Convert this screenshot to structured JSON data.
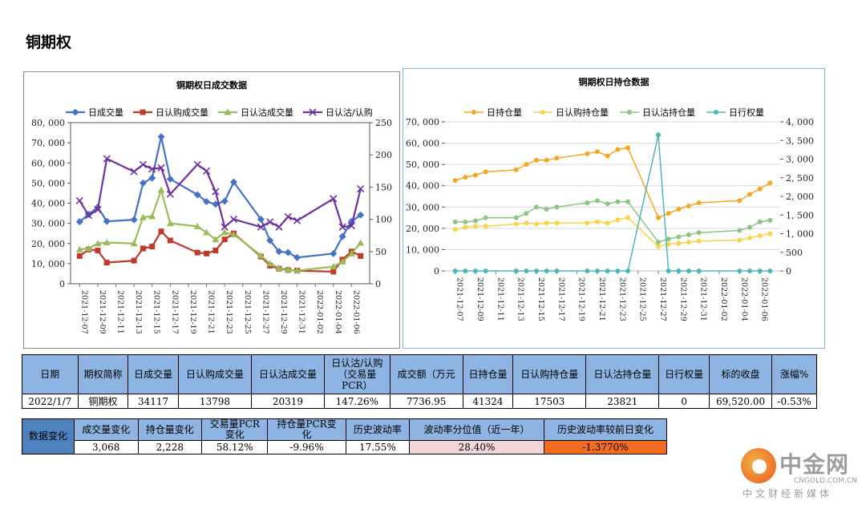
{
  "page": {
    "title": "铜期权"
  },
  "chart_data": [
    {
      "type": "line",
      "title": "铜期权日成交数据",
      "x": [
        "2021-12-07",
        "2021-12-08",
        "2021-12-09",
        "2021-12-10",
        "2021-12-13",
        "2021-12-14",
        "2021-12-15",
        "2021-12-16",
        "2021-12-17",
        "2021-12-20",
        "2021-12-21",
        "2021-12-22",
        "2021-12-23",
        "2021-12-24",
        "2021-12-27",
        "2021-12-28",
        "2021-12-29",
        "2021-12-30",
        "2021-12-31",
        "2022-01-04",
        "2022-01-05",
        "2022-01-06",
        "2022-01-07"
      ],
      "x_tick_labels": [
        "2021-12-07",
        "2021-12-09",
        "2021-12-11",
        "2021-12-13",
        "2021-12-15",
        "2021-12-17",
        "2021-12-19",
        "2021-12-21",
        "2021-12-23",
        "2021-12-25",
        "2021-12-27",
        "2021-12-29",
        "2021-12-31",
        "2022-01-02",
        "2022-01-04",
        "2022-01-06"
      ],
      "y_left_ticks": [
        "0",
        "10, 000",
        "20, 000",
        "30, 000",
        "40, 000",
        "50, 000",
        "60, 000",
        "70, 000",
        "80, 000"
      ],
      "y_right_ticks": [
        "0",
        "50",
        "100",
        "150",
        "200",
        "250"
      ],
      "ylim_left": [
        0,
        80000
      ],
      "ylim_right": [
        0,
        250
      ],
      "x_range": [
        "2021-12-06",
        "2022-01-08"
      ],
      "legend_position": "top",
      "grid": false,
      "series": [
        {
          "name": "日成交量",
          "axis": "left",
          "color": "#4472c4",
          "marker": "diamond",
          "values": [
            30800,
            34500,
            38000,
            31000,
            31800,
            50000,
            52500,
            73000,
            52000,
            44200,
            40800,
            39500,
            41000,
            50500,
            32000,
            21500,
            16000,
            15500,
            13000,
            15000,
            23500,
            31000,
            34117
          ]
        },
        {
          "name": "日认购成交量",
          "axis": "left",
          "color": "#c0392b",
          "marker": "square",
          "values": [
            13800,
            17000,
            16500,
            10500,
            11500,
            17500,
            18500,
            26000,
            21500,
            15500,
            15000,
            16500,
            22000,
            25000,
            13500,
            9000,
            7500,
            6800,
            6500,
            6000,
            12000,
            16000,
            13798
          ]
        },
        {
          "name": "日认沽成交量",
          "axis": "left",
          "color": "#9bbb59",
          "marker": "triangle",
          "values": [
            17000,
            17500,
            20000,
            20500,
            20000,
            33000,
            33500,
            46500,
            30000,
            28500,
            25500,
            22000,
            25500,
            24500,
            14000,
            10000,
            7800,
            7000,
            6500,
            8500,
            11000,
            15000,
            20319
          ]
        },
        {
          "name": "日认沽/认购",
          "axis": "right",
          "color": "#7030a0",
          "marker": "x",
          "values": [
            129,
            106,
            115,
            194,
            174,
            185,
            178,
            180,
            139,
            185,
            175,
            143,
            88,
            100,
            88,
            96,
            88,
            104,
            98,
            132,
            88,
            90,
            147.26
          ]
        }
      ]
    },
    {
      "type": "line",
      "title": "铜期权日持仓数据",
      "x": [
        "2021-12-07",
        "2021-12-08",
        "2021-12-09",
        "2021-12-10",
        "2021-12-13",
        "2021-12-14",
        "2021-12-15",
        "2021-12-16",
        "2021-12-17",
        "2021-12-20",
        "2021-12-21",
        "2021-12-22",
        "2021-12-23",
        "2021-12-24",
        "2021-12-27",
        "2021-12-28",
        "2021-12-29",
        "2021-12-30",
        "2021-12-31",
        "2022-01-04",
        "2022-01-05",
        "2022-01-06",
        "2022-01-07"
      ],
      "x_tick_labels": [
        "2021-12-07",
        "2021-12-09",
        "2021-12-11",
        "2021-12-13",
        "2021-12-15",
        "2021-12-17",
        "2021-12-19",
        "2021-12-21",
        "2021-12-23",
        "2021-12-25",
        "2021-12-27",
        "2021-12-29",
        "2021-12-31",
        "2022-01-02",
        "2022-01-04",
        "2022-01-06"
      ],
      "y_left_ticks": [
        "0",
        "10, 000",
        "20, 000",
        "30, 000",
        "40, 000",
        "50, 000",
        "60, 000",
        "70, 000"
      ],
      "y_right_ticks": [
        "0",
        "500",
        "1, 000",
        "1, 500",
        "2, 000",
        "2, 500",
        "3, 000",
        "3, 500",
        "4, 000"
      ],
      "ylim_left": [
        0,
        70000
      ],
      "ylim_right": [
        0,
        4000
      ],
      "x_range": [
        "2021-12-06",
        "2022-01-08"
      ],
      "legend_position": "top",
      "grid": true,
      "series": [
        {
          "name": "日持仓量",
          "axis": "left",
          "color": "#f5a623",
          "marker": "circle",
          "values": [
            42500,
            44000,
            45000,
            46500,
            47500,
            50000,
            52000,
            52000,
            53000,
            55000,
            56000,
            54000,
            57000,
            57800,
            25000,
            27000,
            29000,
            30500,
            32000,
            33000,
            36000,
            38500,
            41324
          ]
        },
        {
          "name": "日认购持仓量",
          "axis": "left",
          "color": "#f7d448",
          "marker": "circle",
          "values": [
            19500,
            20500,
            21000,
            21000,
            22000,
            22500,
            22000,
            22500,
            22500,
            22500,
            23000,
            22500,
            24000,
            25000,
            11500,
            12500,
            13000,
            13500,
            14000,
            14500,
            15500,
            16500,
            17503
          ]
        },
        {
          "name": "日认沽持仓量",
          "axis": "left",
          "color": "#8dc484",
          "marker": "circle",
          "values": [
            23000,
            23000,
            23500,
            25000,
            25000,
            27000,
            30000,
            29000,
            30000,
            32000,
            33000,
            31500,
            32500,
            32500,
            13500,
            15000,
            16000,
            17000,
            18000,
            19000,
            20500,
            23000,
            23821
          ]
        },
        {
          "name": "日行权量",
          "axis": "right",
          "color": "#4bb8b8",
          "marker": "circle",
          "values": [
            0,
            0,
            0,
            0,
            0,
            0,
            0,
            0,
            0,
            0,
            0,
            0,
            0,
            0,
            3650,
            0,
            0,
            0,
            0,
            0,
            0,
            0,
            0
          ]
        }
      ]
    }
  ],
  "table1": {
    "headers": [
      "日期",
      "期权简称",
      "日成交量",
      "日认购成交量",
      "日认沽成交量",
      "日认沽/认购（交易量PCR）",
      "成交额（万元）",
      "日持仓量",
      "日认购持仓量",
      "日认沽持仓量",
      "日行权量",
      "标的收盘",
      "涨幅%"
    ],
    "header_lines": [
      [
        "日期"
      ],
      [
        "期权简称"
      ],
      [
        "日成交量"
      ],
      [
        "日认购成交量"
      ],
      [
        "日认沽成交量"
      ],
      [
        "日认沽/认购",
        "（交易量",
        "PCR）"
      ],
      [
        "成交额（万元"
      ],
      [
        "日持仓量"
      ],
      [
        "日认购持仓量"
      ],
      [
        "日认沽持仓量"
      ],
      [
        "日行权量"
      ],
      [
        "标的收盘"
      ],
      [
        "涨幅%"
      ]
    ],
    "row": [
      "2022/1/7",
      "铜期权",
      "34117",
      "13798",
      "20319",
      "147.26%",
      "7736.95",
      "41324",
      "17503",
      "23821",
      "0",
      "69,520.00",
      "-0.53%"
    ]
  },
  "table2": {
    "side_label": "数据变化",
    "headers": [
      "成交量变化",
      "持仓量变化",
      "交易量PCR变化",
      "持仓量PCR变化",
      "历史波动率",
      "波动率分位值（近一年）",
      "历史波动率较前日变化"
    ],
    "header_lines": [
      [
        "成交量变化"
      ],
      [
        "持仓量变化"
      ],
      [
        "交易量PCR",
        "变化"
      ],
      [
        "持仓量PCR变",
        "化"
      ],
      [
        "历史波动率"
      ],
      [
        "波动率分位值（近一年）"
      ],
      [
        "历史波动率较前日变化"
      ]
    ],
    "row": [
      "3,068",
      "2,228",
      "58.12%",
      "-9.96%",
      "17.55%",
      "28.40%",
      "-1.3770%"
    ]
  },
  "logo": {
    "name": "中金网",
    "domain": "CNGOLD.COM.CN",
    "tagline": "中文财经新媒体"
  }
}
